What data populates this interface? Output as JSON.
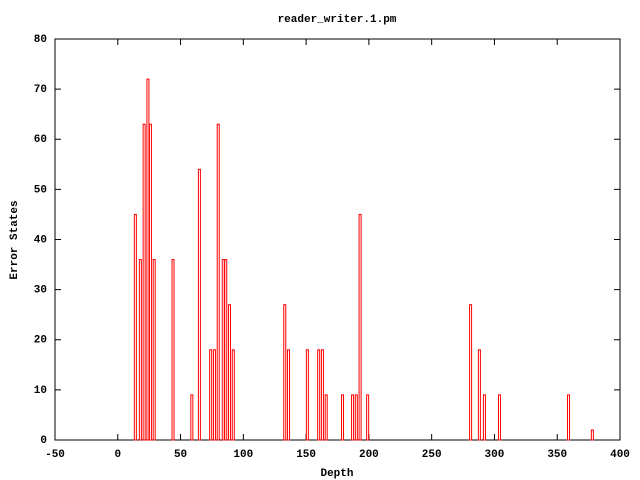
{
  "chart_data": {
    "type": "bar",
    "title": "reader_writer.1.pm",
    "xlabel": "Depth",
    "ylabel": "Error States",
    "x": [
      14,
      18,
      21,
      24,
      26,
      29,
      44,
      59,
      65,
      74,
      77,
      80,
      84,
      86,
      89,
      92,
      133,
      136,
      151,
      160,
      163,
      166,
      179,
      187,
      190,
      193,
      199,
      281,
      288,
      292,
      304,
      359,
      378
    ],
    "values": [
      45,
      36,
      63,
      72,
      63,
      36,
      36,
      9,
      54,
      18,
      18,
      63,
      36,
      36,
      27,
      18,
      27,
      18,
      18,
      18,
      18,
      9,
      9,
      9,
      9,
      45,
      9,
      27,
      18,
      9,
      9,
      9,
      2
    ],
    "color": "#ff0000",
    "xlim": [
      -50,
      400
    ],
    "xticks": [
      -50,
      0,
      50,
      100,
      150,
      200,
      250,
      300,
      350,
      400
    ],
    "ylim": [
      0,
      80
    ],
    "yticks": [
      0,
      10,
      20,
      30,
      40,
      50,
      60,
      70,
      80
    ]
  }
}
